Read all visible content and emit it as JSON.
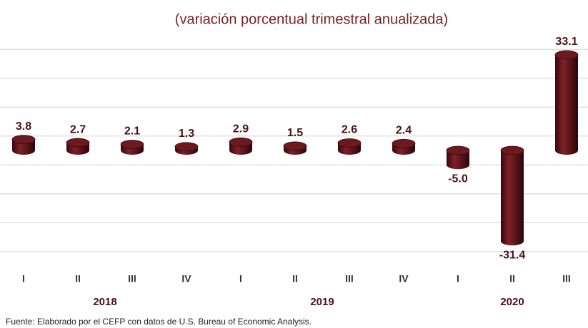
{
  "chart_data": {
    "type": "bar",
    "title": "(variación porcentual trimestral anualizada)",
    "groups": [
      {
        "name": "2018",
        "categories": [
          "I",
          "II",
          "III",
          "IV"
        ]
      },
      {
        "name": "2019",
        "categories": [
          "I",
          "II",
          "III",
          "IV"
        ]
      },
      {
        "name": "2020",
        "categories": [
          "I",
          "II",
          "III"
        ]
      }
    ],
    "values": [
      3.8,
      2.7,
      2.1,
      1.3,
      2.9,
      1.5,
      2.6,
      2.4,
      -5.0,
      -31.4,
      33.1
    ],
    "value_labels": [
      "3.8",
      "2.7",
      "2.1",
      "1.3",
      "2.9",
      "1.5",
      "2.6",
      "2.4",
      "-5.0",
      "-31.4",
      "33.1"
    ],
    "color": "#5e0f16",
    "ylim": [
      -40,
      40
    ],
    "yticks": [
      -35,
      -25,
      -15,
      -5,
      5,
      15,
      25,
      35
    ],
    "grid": true,
    "source": "Fuente: Elaborado por el CEFP con datos de U.S. Bureau of Economic Analysis."
  }
}
